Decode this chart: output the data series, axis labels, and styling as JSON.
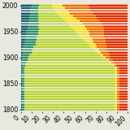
{
  "years": [
    1800,
    1805,
    1810,
    1815,
    1820,
    1825,
    1830,
    1835,
    1840,
    1845,
    1850,
    1855,
    1860,
    1865,
    1870,
    1875,
    1880,
    1885,
    1890,
    1895,
    1900,
    1905,
    1910,
    1915,
    1920,
    1925,
    1930,
    1935,
    1940,
    1945,
    1950,
    1955,
    1960,
    1965,
    1970,
    1975,
    1980,
    1985,
    1990,
    1995,
    2000
  ],
  "segments": [
    [
      1,
      2,
      85,
      2,
      2,
      8
    ],
    [
      1,
      2,
      85,
      2,
      2,
      8
    ],
    [
      1,
      2,
      85,
      2,
      2,
      8
    ],
    [
      1,
      2,
      85,
      2,
      2,
      8
    ],
    [
      1,
      2,
      85,
      2,
      2,
      8
    ],
    [
      1,
      2,
      85,
      2,
      2,
      8
    ],
    [
      1,
      2,
      85,
      2,
      2,
      8
    ],
    [
      1,
      2,
      85,
      2,
      2,
      8
    ],
    [
      1,
      2,
      85,
      2,
      2,
      8
    ],
    [
      1,
      2,
      85,
      2,
      2,
      8
    ],
    [
      1,
      2,
      85,
      2,
      2,
      8
    ],
    [
      1,
      2,
      85,
      2,
      2,
      8
    ],
    [
      1,
      2,
      85,
      2,
      2,
      8
    ],
    [
      1,
      2,
      85,
      2,
      2,
      8
    ],
    [
      1,
      2,
      85,
      2,
      2,
      8
    ],
    [
      1,
      2,
      85,
      2,
      2,
      8
    ],
    [
      1,
      2,
      85,
      2,
      2,
      8
    ],
    [
      1,
      3,
      82,
      2,
      2,
      10
    ],
    [
      1,
      4,
      78,
      2,
      3,
      12
    ],
    [
      1,
      5,
      74,
      2,
      4,
      14
    ],
    [
      1,
      6,
      70,
      2,
      5,
      16
    ],
    [
      1,
      7,
      66,
      3,
      6,
      17
    ],
    [
      2,
      8,
      61,
      4,
      7,
      18
    ],
    [
      2,
      9,
      57,
      5,
      8,
      19
    ],
    [
      2,
      10,
      53,
      6,
      9,
      20
    ],
    [
      3,
      11,
      49,
      7,
      10,
      20
    ],
    [
      3,
      11,
      46,
      8,
      11,
      21
    ],
    [
      4,
      11,
      43,
      9,
      12,
      21
    ],
    [
      4,
      11,
      40,
      10,
      13,
      22
    ],
    [
      5,
      11,
      37,
      11,
      14,
      22
    ],
    [
      5,
      11,
      35,
      12,
      15,
      22
    ],
    [
      6,
      11,
      32,
      13,
      16,
      22
    ],
    [
      6,
      10,
      30,
      14,
      17,
      23
    ],
    [
      7,
      10,
      27,
      14,
      18,
      24
    ],
    [
      7,
      9,
      25,
      14,
      19,
      26
    ],
    [
      8,
      8,
      23,
      13,
      20,
      28
    ],
    [
      8,
      8,
      20,
      13,
      21,
      30
    ],
    [
      9,
      7,
      18,
      12,
      22,
      32
    ],
    [
      9,
      7,
      16,
      12,
      22,
      34
    ],
    [
      9,
      7,
      14,
      11,
      23,
      36
    ],
    [
      10,
      7,
      12,
      10,
      24,
      37
    ]
  ],
  "colors": [
    "#1a5c6e",
    "#2a9070",
    "#b8d435",
    "#f5e030",
    "#f07000",
    "#e03000"
  ],
  "xlim": [
    0,
    100
  ],
  "xticks": [
    0,
    10,
    20,
    30,
    40,
    50,
    60,
    70,
    80,
    90,
    100
  ],
  "xtick_labels": [
    "0",
    "10",
    "20",
    "30",
    "40",
    "50",
    "60",
    "70",
    "80",
    "90",
    "100"
  ],
  "ytick_labels": [
    "1800",
    "1850",
    "1900",
    "1950",
    "2000"
  ],
  "ytick_positions": [
    1800,
    1850,
    1900,
    1950,
    2000
  ],
  "background_color": "#e8e8e0",
  "bar_height": 4.2,
  "tick_fontsize": 5.5,
  "figsize": [
    1.6,
    1.6
  ],
  "dpi": 100
}
